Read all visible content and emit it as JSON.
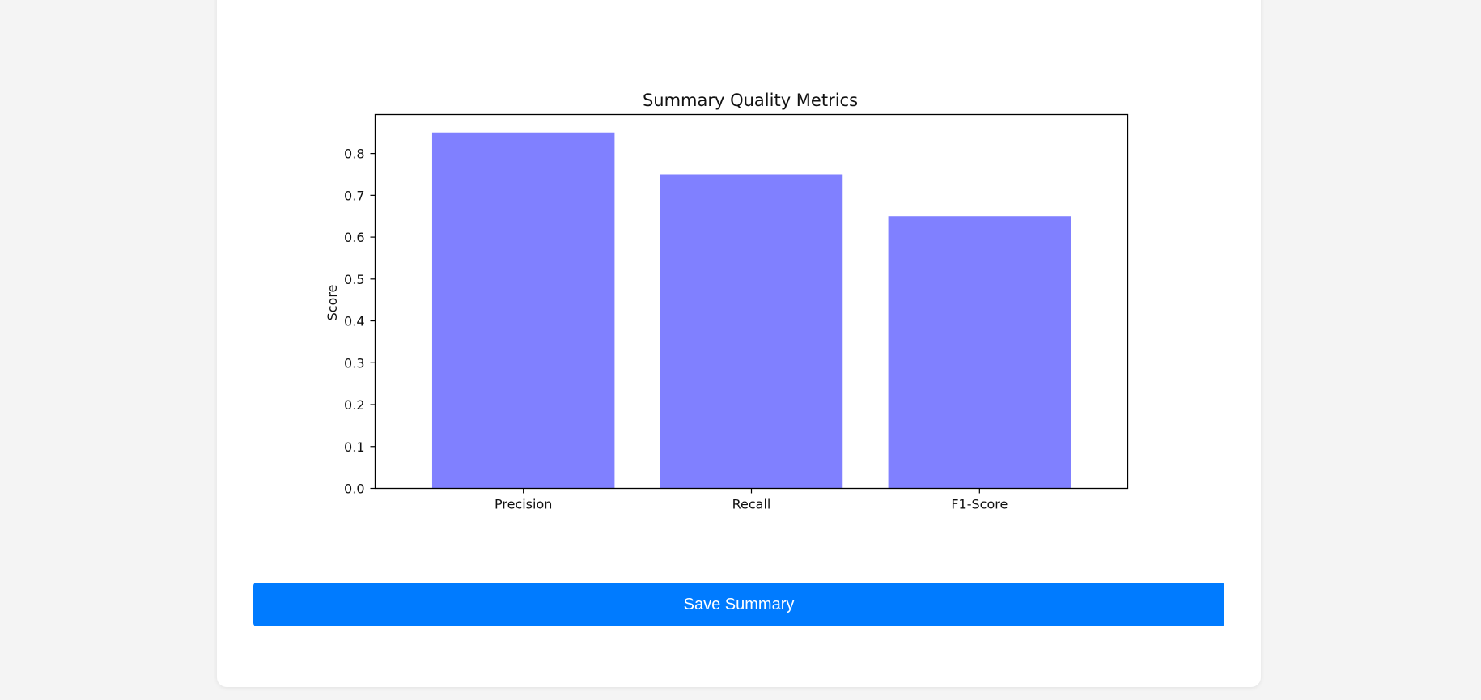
{
  "chart_data": {
    "type": "bar",
    "title": "Summary Quality Metrics",
    "xlabel": "",
    "ylabel": "Score",
    "categories": [
      "Precision",
      "Recall",
      "F1-Score"
    ],
    "values": [
      0.85,
      0.75,
      0.65
    ],
    "ylim": [
      0,
      0.893
    ],
    "yticks": [
      "0.0",
      "0.1",
      "0.2",
      "0.3",
      "0.4",
      "0.5",
      "0.6",
      "0.7",
      "0.8"
    ],
    "grid": false,
    "bar_color": "#8080ff"
  },
  "actions": {
    "save_label": "Save Summary",
    "save_color": "#007bff"
  }
}
